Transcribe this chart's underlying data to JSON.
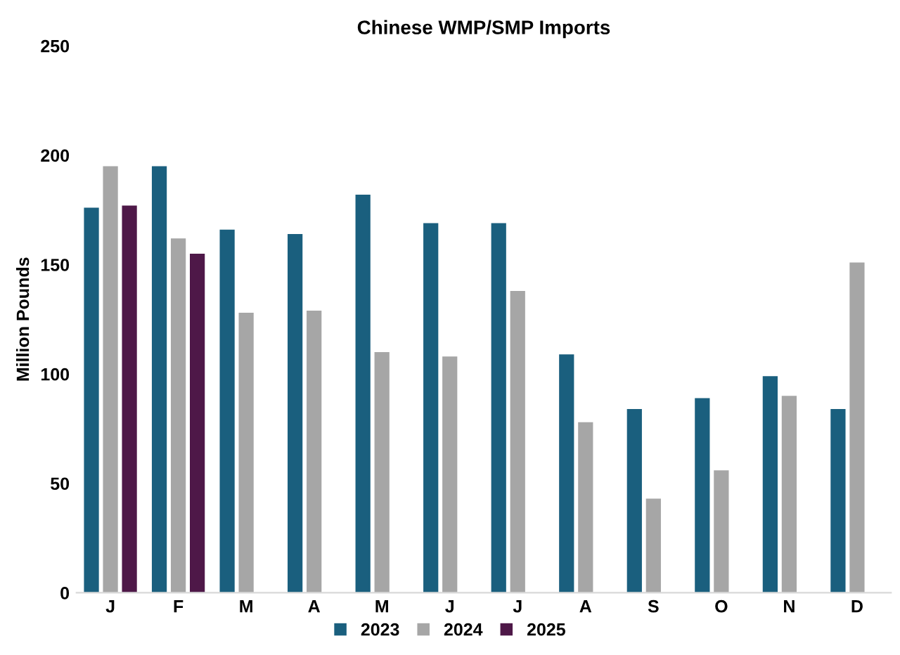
{
  "chart_data": {
    "type": "bar",
    "title": "Chinese WMP/SMP Imports",
    "ylabel": "Million Pounds",
    "categories": [
      "J",
      "F",
      "M",
      "A",
      "M",
      "J",
      "J",
      "A",
      "S",
      "O",
      "N",
      "D"
    ],
    "series": [
      {
        "name": "2023",
        "color": "#1a5f7e",
        "values": [
          176,
          195,
          166,
          164,
          182,
          169,
          169,
          109,
          84,
          89,
          99,
          84
        ]
      },
      {
        "name": "2024",
        "color": "#a6a6a6",
        "values": [
          195,
          162,
          128,
          129,
          110,
          108,
          138,
          78,
          43,
          56,
          90,
          151
        ]
      },
      {
        "name": "2025",
        "color": "#4e1848",
        "values": [
          177,
          155,
          null,
          null,
          null,
          null,
          null,
          null,
          null,
          null,
          null,
          null
        ]
      }
    ],
    "ylim": [
      0,
      250
    ],
    "yticks": [
      0,
      50,
      100,
      150,
      200,
      250
    ],
    "grid": false,
    "legend": "bottom"
  }
}
